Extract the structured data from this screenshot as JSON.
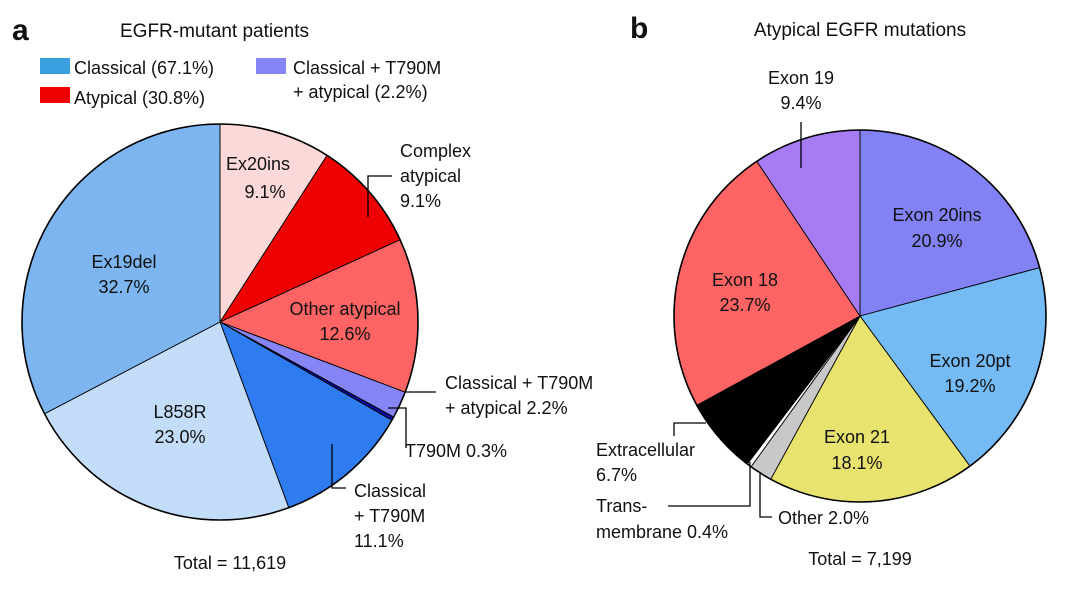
{
  "panel_a": {
    "letter": "a",
    "title": "EGFR-mutant patients",
    "total": "Total = 11,619",
    "legend": [
      {
        "lines": [
          "Classical (67.1%)"
        ],
        "color": "#3aa0e0"
      },
      {
        "lines": [
          "Atypical (30.8%)"
        ],
        "color": "#ee0000"
      },
      {
        "lines": [
          "Classical + T790M",
          "+ atypical (2.2%)"
        ],
        "color": "#8585f5"
      }
    ],
    "labels": {
      "ex20ins": [
        "Ex20ins",
        "9.1%"
      ],
      "complex": [
        "Complex",
        "atypical",
        "9.1%"
      ],
      "other": [
        "Other atypical",
        "12.6%"
      ],
      "cl_t790m_atyp": [
        "Classical + T790M",
        "+ atypical 2.2%"
      ],
      "t790m": [
        "T790M 0.3%"
      ],
      "cl_t790m": [
        "Classical",
        "+ T790M",
        "11.1%"
      ],
      "l858r": [
        "L858R",
        "23.0%"
      ],
      "ex19del": [
        "Ex19del",
        "32.7%"
      ]
    }
  },
  "panel_b": {
    "letter": "b",
    "title": "Atypical EGFR mutations",
    "total": "Total = 7,199",
    "labels": {
      "exon19": [
        "Exon 19",
        "9.4%"
      ],
      "exon20ins": [
        "Exon 20ins",
        "20.9%"
      ],
      "exon20pt": [
        "Exon 20pt",
        "19.2%"
      ],
      "exon21": [
        "Exon 21",
        "18.1%"
      ],
      "other": [
        "Other 2.0%"
      ],
      "transmembrane": [
        "Trans-",
        "membrane 0.4%"
      ],
      "extracellular": [
        "Extracellular",
        "6.7%"
      ],
      "exon18": [
        "Exon 18",
        "23.7%"
      ]
    }
  },
  "chart_data": [
    {
      "type": "pie",
      "title": "EGFR-mutant patients",
      "total": "Total = 11,619",
      "slices": [
        {
          "key": "ex20ins",
          "label": "Ex20ins",
          "value": 9.1,
          "color": "#fcd9d9"
        },
        {
          "key": "complex",
          "label": "Complex atypical",
          "value": 9.1,
          "color": "#ee0000"
        },
        {
          "key": "other",
          "label": "Other atypical",
          "value": 12.6,
          "color": "#ff6464"
        },
        {
          "key": "cl_t790m_atyp",
          "label": "Classical + T790M + atypical",
          "value": 2.2,
          "color": "#8585f5"
        },
        {
          "key": "t790m",
          "label": "T790M",
          "value": 0.3,
          "color": "#0a0aa0"
        },
        {
          "key": "cl_t790m",
          "label": "Classical + T790M",
          "value": 11.1,
          "color": "#2f7cf0"
        },
        {
          "key": "l858r",
          "label": "L858R",
          "value": 23.0,
          "color": "#c3dcf7"
        },
        {
          "key": "ex19del",
          "label": "Ex19del",
          "value": 32.7,
          "color": "#7cb5ef"
        }
      ],
      "legend": [
        "Classical (67.1%)",
        "Atypical (30.8%)",
        "Classical + T790M + atypical (2.2%)"
      ],
      "legend_placement": "top"
    },
    {
      "type": "pie",
      "title": "Atypical EGFR mutations",
      "total": "Total = 7,199",
      "slices": [
        {
          "key": "exon20ins",
          "label": "Exon 20ins",
          "value": 20.9,
          "color": "#8282f5"
        },
        {
          "key": "exon20pt",
          "label": "Exon 20pt",
          "value": 19.2,
          "color": "#74bbf6"
        },
        {
          "key": "exon21",
          "label": "Exon 21",
          "value": 18.1,
          "color": "#e8e36e"
        },
        {
          "key": "other",
          "label": "Other",
          "value": 2.0,
          "color": "#c8c8c8"
        },
        {
          "key": "transmembrane",
          "label": "Transmembrane",
          "value": 0.4,
          "color": "#ffffff"
        },
        {
          "key": "extracellular",
          "label": "Extracellular",
          "value": 6.7,
          "color": "#000000"
        },
        {
          "key": "exon18",
          "label": "Exon 18",
          "value": 23.7,
          "color": "#ff6464"
        },
        {
          "key": "exon19",
          "label": "Exon 19",
          "value": 9.4,
          "color": "#a67cf5"
        }
      ]
    }
  ]
}
